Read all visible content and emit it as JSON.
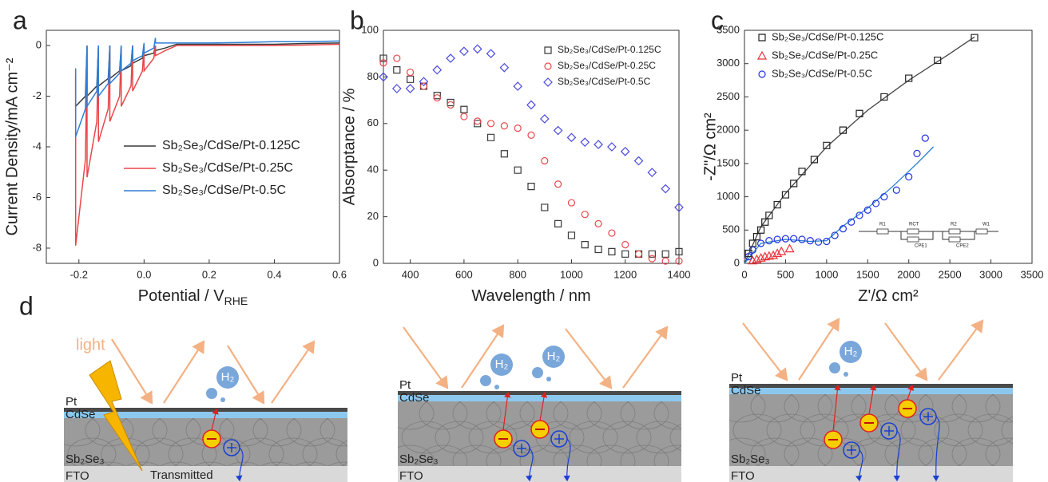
{
  "chart_data": [
    {
      "type": "line",
      "label": "a",
      "xlabel": {
        "text": "Potential / V",
        "sub": "RHE"
      },
      "ylabel": "Current Density/mA cm⁻²",
      "xlim": [
        -0.3,
        0.6
      ],
      "ylim": [
        -8.6,
        0.6
      ],
      "xticks": [
        -0.2,
        {
          "value": 0,
          "label": "0.0"
        },
        0.2,
        0.4,
        0.6
      ],
      "yticks": [
        -8,
        -6,
        -4,
        -2,
        0
      ],
      "legend": "center right",
      "x": [
        -0.21,
        -0.21,
        -0.18,
        -0.175,
        -0.175,
        -0.145,
        -0.14,
        -0.14,
        -0.11,
        -0.105,
        -0.105,
        -0.075,
        -0.07,
        -0.07,
        -0.04,
        -0.035,
        -0.035,
        -0.005,
        0,
        0,
        0.03,
        0.035,
        0.035,
        0.065,
        0.1,
        0.2,
        0.3,
        0.4,
        0.5,
        0.6
      ],
      "series": [
        {
          "name": "Sb₂Se₃/CdSe/Pt-0.125C",
          "color": "#3a3a3a",
          "values": [
            -1.0,
            -2.4,
            -2.0,
            0,
            -2.0,
            -1.6,
            0,
            -1.6,
            -1.3,
            0,
            -1.3,
            -1.0,
            0,
            -1.0,
            -0.8,
            0,
            -0.7,
            -0.5,
            0,
            -0.4,
            -0.3,
            0,
            -0.2,
            -0.1,
            0.05,
            0.05,
            0.05,
            0.05,
            0.08,
            0.1
          ]
        },
        {
          "name": "Sb₂Se₃/CdSe/Pt-0.25C",
          "color": "#e8474b",
          "values": [
            -1.2,
            -7.9,
            -4.5,
            -0.2,
            -5.2,
            -3.0,
            -0.1,
            -3.8,
            -2.5,
            0,
            -3.0,
            -2.0,
            0,
            -2.4,
            -1.6,
            0,
            -1.8,
            -1.0,
            0,
            -1.0,
            -0.5,
            0,
            -0.4,
            -0.2,
            0,
            0,
            0,
            0,
            0.02,
            0.05
          ]
        },
        {
          "name": "Sb₂Se₃/CdSe/Pt-0.5C",
          "color": "#2f7fd6",
          "values": [
            -0.9,
            -3.6,
            -2.5,
            0,
            -2.4,
            -1.8,
            0,
            -2.0,
            -1.5,
            0,
            -1.5,
            -1.1,
            0,
            -1.0,
            -0.7,
            0,
            -0.6,
            -0.4,
            0.1,
            -0.3,
            -0.1,
            0.3,
            0.1,
            0.1,
            0.1,
            0.1,
            0.12,
            0.15,
            0.15,
            0.18
          ]
        }
      ]
    },
    {
      "type": "scatter",
      "label": "b",
      "xlabel": {
        "text": "Wavelength / nm"
      },
      "ylabel": "Absorptance / %",
      "xlim": [
        300,
        1400
      ],
      "ylim": [
        0,
        100
      ],
      "xticks": [
        400,
        600,
        800,
        1000,
        1200,
        1400
      ],
      "yticks": [
        0,
        20,
        40,
        60,
        80,
        100
      ],
      "legend": "upper right",
      "x": [
        300,
        350,
        400,
        450,
        500,
        550,
        600,
        650,
        700,
        750,
        800,
        850,
        900,
        950,
        1000,
        1050,
        1100,
        1150,
        1200,
        1250,
        1300,
        1350,
        1400
      ],
      "series": [
        {
          "name": "Sb₂Se₃/CdSe/Pt-0.125C",
          "color": "#3a3a3a",
          "marker": "square",
          "values": [
            88,
            83,
            79,
            76,
            72,
            69,
            66,
            60,
            54,
            47,
            40,
            33,
            24,
            17,
            12,
            8,
            6,
            5,
            4,
            4,
            4,
            4,
            5
          ]
        },
        {
          "name": "Sb₂Se₃/CdSe/Pt-0.25C",
          "color": "#e8474b",
          "marker": "circle",
          "values": [
            86,
            88,
            82,
            76,
            71,
            68,
            63,
            61,
            60,
            59,
            58,
            55,
            44,
            34,
            26,
            21,
            17,
            13,
            8,
            4,
            2,
            1,
            1
          ]
        },
        {
          "name": "Sb₂Se₃/CdSe/Pt-0.5C",
          "color": "#4a4ae0",
          "marker": "diamond",
          "values": [
            80,
            75,
            75,
            78,
            83,
            88,
            91,
            92,
            90,
            84,
            76,
            68,
            62,
            57,
            54,
            52,
            51,
            50,
            48,
            44,
            39,
            32,
            24
          ]
        }
      ]
    },
    {
      "type": "scatter",
      "label": "c",
      "xlabel": {
        "text": "Z'/Ω cm²"
      },
      "ylabel": "-Z\"/Ω cm²",
      "xlim": [
        0,
        3500
      ],
      "ylim": [
        0,
        3500
      ],
      "xticks": [
        0,
        500,
        1000,
        1500,
        2000,
        2500,
        3000,
        3500
      ],
      "yticks": [
        0,
        500,
        1000,
        1500,
        2000,
        2500,
        3000,
        3500
      ],
      "legend": "upper left",
      "series": [
        {
          "name": "Sb₂Se₃/CdSe/Pt-0.125C",
          "color": "#222222",
          "marker": "square",
          "x": [
            50,
            100,
            150,
            200,
            250,
            300,
            400,
            500,
            600,
            700,
            850,
            1000,
            1200,
            1400,
            1700,
            2000,
            2350,
            2800
          ],
          "values": [
            150,
            300,
            400,
            500,
            620,
            720,
            880,
            1030,
            1200,
            1380,
            1560,
            1770,
            2000,
            2250,
            2500,
            2780,
            3050,
            3390
          ]
        },
        {
          "name": "Sb₂Se₃/CdSe/Pt-0.25C",
          "color": "#e8303a",
          "marker": "triangle",
          "x": [
            100,
            150,
            200,
            250,
            300,
            350,
            400,
            450,
            550
          ],
          "values": [
            40,
            60,
            80,
            100,
            110,
            120,
            150,
            180,
            220
          ]
        },
        {
          "name": "Sb₂Se₃/CdSe/Pt-0.5C",
          "color": "#2030e0",
          "marker": "circle",
          "x": [
            50,
            100,
            200,
            300,
            400,
            500,
            600,
            700,
            800,
            900,
            1000,
            1100,
            1200,
            1300,
            1400,
            1500,
            1600,
            1700,
            1850,
            2000,
            2100,
            2200
          ],
          "values": [
            100,
            200,
            300,
            340,
            360,
            370,
            370,
            360,
            340,
            320,
            330,
            420,
            520,
            620,
            720,
            800,
            900,
            1000,
            1100,
            1300,
            1650,
            1880
          ]
        }
      ],
      "fits": [
        {
          "color": "#444444",
          "x": [
            0,
            200,
            500,
            1000,
            1500,
            2000,
            2500,
            2800
          ],
          "values": [
            0,
            550,
            1050,
            1750,
            2300,
            2750,
            3150,
            3400
          ]
        },
        {
          "color": "#2a7fd0",
          "x": [
            0,
            200,
            500,
            800,
            1000,
            1200,
            1500,
            1800,
            2100,
            2300
          ],
          "values": [
            0,
            300,
            360,
            330,
            340,
            560,
            830,
            1150,
            1500,
            1750
          ]
        }
      ],
      "circuit": [
        "R1",
        "RCT",
        "CPE1",
        "R2",
        "CPE2",
        "W1"
      ]
    }
  ],
  "diagram": {
    "label": "d",
    "panels": [
      {
        "light": "light",
        "layers": [
          "Pt",
          "CdSe",
          "Sb₂Se₃",
          "FTO"
        ],
        "transmitted": "Transmitted",
        "h2": [
          "H₂"
        ]
      },
      {
        "layers": [
          "Pt",
          "CdSe",
          "Sb₂Se₃",
          "FTO"
        ],
        "h2": [
          "H₂",
          "H₂"
        ]
      },
      {
        "layers": [
          "Pt",
          "CdSe",
          "Sb₂Se₃",
          "FTO"
        ],
        "h2": [
          "H₂"
        ]
      }
    ]
  }
}
